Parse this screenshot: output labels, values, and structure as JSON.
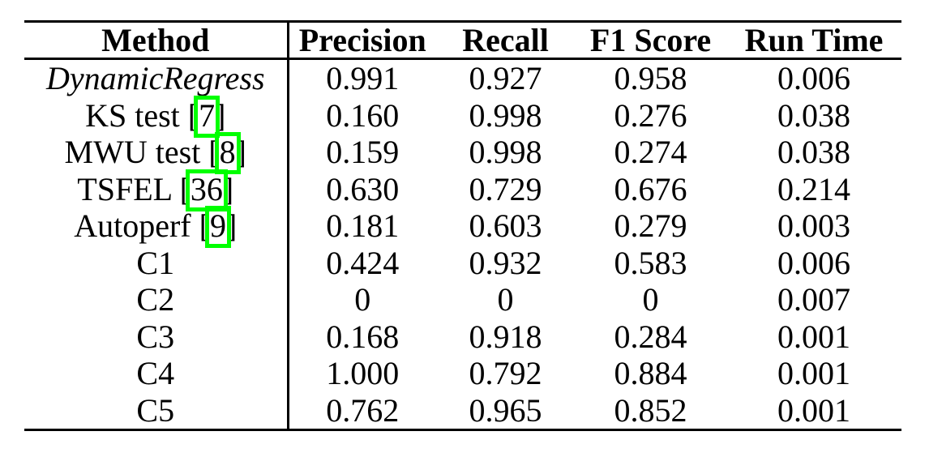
{
  "page": {
    "background_color": "#ffffff",
    "text_color": "#000000"
  },
  "link_box_color": "#00ff00",
  "table": {
    "headers": [
      "Method",
      "Precision",
      "Recall",
      "F1 Score",
      "Run Time"
    ],
    "rows": [
      {
        "method": "DynamicRegress",
        "emphasis": true,
        "values": [
          "0.991",
          "0.927",
          "0.958",
          "0.006"
        ]
      },
      {
        "method_prefix": "KS test [",
        "cite": "7",
        "method_suffix": "]",
        "values": [
          "0.160",
          "0.998",
          "0.276",
          "0.038"
        ]
      },
      {
        "method_prefix": "MWU test [",
        "cite": "8",
        "method_suffix": "]",
        "values": [
          "0.159",
          "0.998",
          "0.274",
          "0.038"
        ]
      },
      {
        "method_prefix": "TSFEL [",
        "cite": "36",
        "method_suffix": "]",
        "values": [
          "0.630",
          "0.729",
          "0.676",
          "0.214"
        ]
      },
      {
        "method_prefix": "Autoperf [",
        "cite": "9",
        "method_suffix": "]",
        "values": [
          "0.181",
          "0.603",
          "0.279",
          "0.003"
        ]
      },
      {
        "method": "C1",
        "values": [
          "0.424",
          "0.932",
          "0.583",
          "0.006"
        ]
      },
      {
        "method": "C2",
        "values": [
          "0",
          "0",
          "0",
          "0.007"
        ]
      },
      {
        "method": "C3",
        "values": [
          "0.168",
          "0.918",
          "0.284",
          "0.001"
        ]
      },
      {
        "method": "C4",
        "values": [
          "1.000",
          "0.792",
          "0.884",
          "0.001"
        ]
      },
      {
        "method": "C5",
        "values": [
          "0.762",
          "0.965",
          "0.852",
          "0.001"
        ]
      }
    ]
  }
}
